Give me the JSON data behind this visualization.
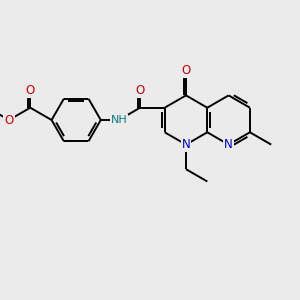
{
  "bg_color": "#ebebeb",
  "bond_color": "#000000",
  "bond_width": 1.4,
  "atom_colors": {
    "C": "#000000",
    "N": "#0000cc",
    "O": "#cc0000",
    "H": "#008080"
  },
  "font_size": 8.5,
  "fig_size": [
    3.0,
    3.0
  ],
  "dpi": 100
}
